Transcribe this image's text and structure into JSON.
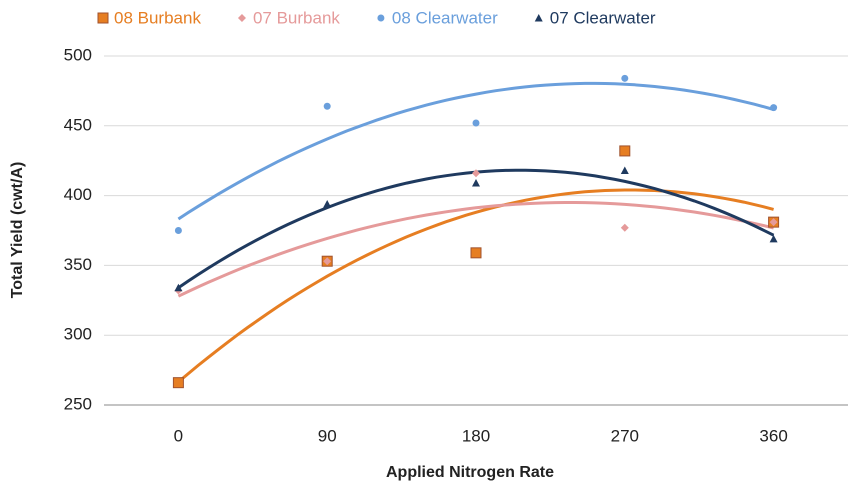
{
  "chart_data": {
    "type": "scatter",
    "x_label": "Applied Nitrogen Rate",
    "y_label": "Total Yield (cwt/A)",
    "x": [
      0,
      90,
      180,
      270,
      360
    ],
    "series": [
      {
        "name": "08 Burbank",
        "color": "#e67e22",
        "marker": "square",
        "values": [
          266,
          353,
          359,
          432,
          381
        ]
      },
      {
        "name": "07 Burbank",
        "color": "#e59a9a",
        "marker": "diamond",
        "values": [
          332,
          353,
          416,
          377,
          381
        ]
      },
      {
        "name": "08 Clearwater",
        "color": "#6a9fdc",
        "marker": "circle",
        "values": [
          375,
          464,
          452,
          484,
          463
        ]
      },
      {
        "name": "07 Clearwater",
        "color": "#1f3a5f",
        "marker": "triangle",
        "values": [
          334,
          394,
          409,
          418,
          369
        ]
      }
    ],
    "trendline": "polynomial-2",
    "xlim": [
      -45,
      405
    ],
    "xticks": [
      0,
      90,
      180,
      270,
      360
    ],
    "ylim": [
      250,
      500
    ],
    "yticks": [
      250,
      300,
      350,
      400,
      450,
      500
    ],
    "grid": true,
    "legend": "top"
  }
}
